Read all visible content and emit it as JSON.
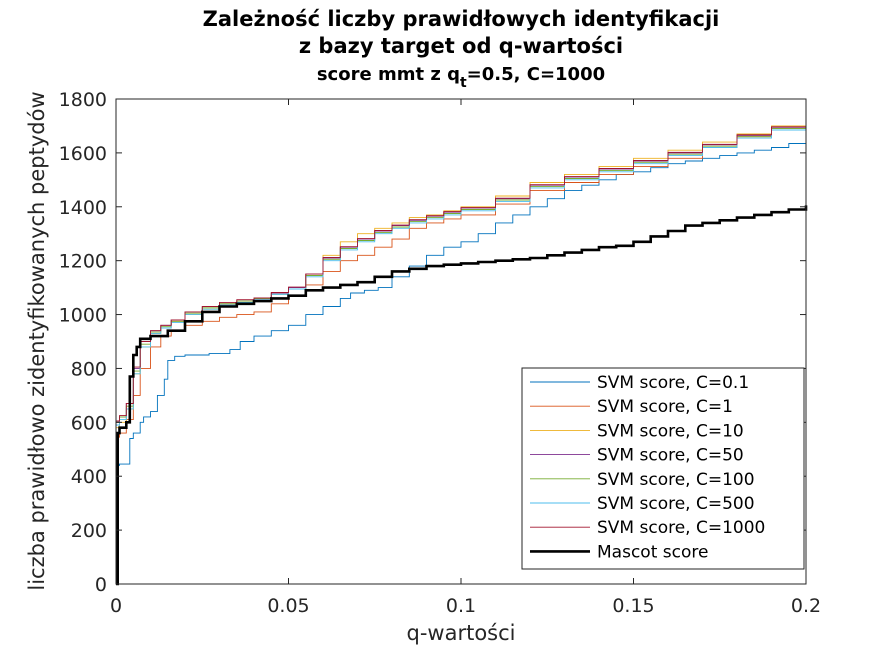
{
  "chart_data": {
    "type": "line",
    "title": "Zależność liczby prawidłowych identyfikacji",
    "title_line2": "z bazy target od q-wartości",
    "subtitle_prefix": "score mmt z q",
    "subtitle_sub": "t",
    "subtitle_suffix": "=0.5, C=1000",
    "xlabel": "q-wartości",
    "ylabel": "liczba prawidłowo zidentyfikowanych peptydów",
    "xlim": [
      0,
      0.2
    ],
    "ylim": [
      0,
      1800
    ],
    "xticks": [
      0,
      0.05,
      0.1,
      0.15,
      0.2
    ],
    "xtick_labels": [
      "0",
      "0.05",
      "0.1",
      "0.15",
      "0.2"
    ],
    "yticks": [
      0,
      200,
      400,
      600,
      800,
      1000,
      1200,
      1400,
      1600,
      1800
    ],
    "ytick_labels": [
      "0",
      "200",
      "400",
      "600",
      "800",
      "1000",
      "1200",
      "1400",
      "1600",
      "1800"
    ],
    "grid": false,
    "legend_position": "bottom-right",
    "series": [
      {
        "name": "SVM score, C=0.1",
        "color": "#0072BD",
        "line_width": 0.9,
        "x": [
          0,
          0.001,
          0.004,
          0.005,
          0.007,
          0.008,
          0.01,
          0.012,
          0.014,
          0.015,
          0.017,
          0.02,
          0.027,
          0.033,
          0.036,
          0.04,
          0.045,
          0.05,
          0.055,
          0.06,
          0.065,
          0.068,
          0.072,
          0.076,
          0.08,
          0.085,
          0.09,
          0.095,
          0.1,
          0.105,
          0.11,
          0.115,
          0.12,
          0.125,
          0.13,
          0.135,
          0.14,
          0.145,
          0.15,
          0.155,
          0.16,
          0.165,
          0.17,
          0.175,
          0.18,
          0.185,
          0.19,
          0.195,
          0.2
        ],
        "y": [
          440,
          445,
          540,
          560,
          600,
          620,
          640,
          700,
          760,
          830,
          845,
          850,
          855,
          870,
          900,
          920,
          940,
          960,
          1000,
          1030,
          1060,
          1080,
          1090,
          1100,
          1140,
          1180,
          1220,
          1250,
          1270,
          1300,
          1340,
          1370,
          1400,
          1430,
          1460,
          1480,
          1500,
          1520,
          1530,
          1545,
          1560,
          1570,
          1580,
          1590,
          1600,
          1610,
          1620,
          1635,
          1640
        ]
      },
      {
        "name": "SVM score, C=1",
        "color": "#D95319",
        "line_width": 0.9,
        "x": [
          0,
          0.001,
          0.003,
          0.005,
          0.007,
          0.01,
          0.013,
          0.016,
          0.02,
          0.025,
          0.03,
          0.035,
          0.04,
          0.045,
          0.05,
          0.055,
          0.06,
          0.065,
          0.07,
          0.075,
          0.08,
          0.085,
          0.09,
          0.095,
          0.1,
          0.11,
          0.12,
          0.13,
          0.14,
          0.15,
          0.16,
          0.17,
          0.18,
          0.19,
          0.2
        ],
        "y": [
          545,
          560,
          610,
          700,
          800,
          880,
          920,
          940,
          960,
          975,
          990,
          1000,
          1010,
          1040,
          1070,
          1110,
          1160,
          1200,
          1220,
          1250,
          1280,
          1320,
          1340,
          1355,
          1370,
          1410,
          1460,
          1490,
          1520,
          1550,
          1580,
          1620,
          1660,
          1690,
          1720
        ]
      },
      {
        "name": "SVM score, C=10",
        "color": "#EDB120",
        "line_width": 0.9,
        "x": [
          0,
          0.001,
          0.003,
          0.005,
          0.007,
          0.01,
          0.013,
          0.016,
          0.02,
          0.025,
          0.03,
          0.035,
          0.04,
          0.045,
          0.05,
          0.055,
          0.06,
          0.065,
          0.07,
          0.075,
          0.08,
          0.085,
          0.09,
          0.095,
          0.1,
          0.11,
          0.12,
          0.13,
          0.14,
          0.15,
          0.16,
          0.17,
          0.18,
          0.19,
          0.2
        ],
        "y": [
          580,
          600,
          650,
          780,
          880,
          930,
          950,
          975,
          1000,
          1020,
          1040,
          1050,
          1060,
          1080,
          1100,
          1150,
          1220,
          1270,
          1300,
          1320,
          1340,
          1360,
          1370,
          1385,
          1400,
          1440,
          1490,
          1520,
          1550,
          1580,
          1610,
          1640,
          1670,
          1700,
          1730
        ]
      },
      {
        "name": "SVM score, C=50",
        "color": "#7E2F8E",
        "line_width": 0.9,
        "x": [
          0,
          0.001,
          0.003,
          0.005,
          0.007,
          0.01,
          0.013,
          0.016,
          0.02,
          0.025,
          0.03,
          0.035,
          0.04,
          0.045,
          0.05,
          0.055,
          0.06,
          0.065,
          0.07,
          0.075,
          0.08,
          0.085,
          0.09,
          0.095,
          0.1,
          0.11,
          0.12,
          0.13,
          0.14,
          0.15,
          0.16,
          0.17,
          0.18,
          0.19,
          0.2
        ],
        "y": [
          600,
          620,
          670,
          800,
          900,
          940,
          960,
          980,
          1010,
          1030,
          1040,
          1050,
          1060,
          1080,
          1100,
          1150,
          1210,
          1250,
          1280,
          1310,
          1330,
          1350,
          1365,
          1380,
          1395,
          1430,
          1480,
          1510,
          1540,
          1570,
          1600,
          1630,
          1665,
          1695,
          1735
        ]
      },
      {
        "name": "SVM score, C=100",
        "color": "#77AC30",
        "line_width": 0.9,
        "x": [
          0,
          0.001,
          0.003,
          0.005,
          0.007,
          0.01,
          0.013,
          0.016,
          0.02,
          0.025,
          0.03,
          0.035,
          0.04,
          0.045,
          0.05,
          0.055,
          0.06,
          0.065,
          0.07,
          0.075,
          0.08,
          0.085,
          0.09,
          0.095,
          0.1,
          0.11,
          0.12,
          0.13,
          0.14,
          0.15,
          0.16,
          0.17,
          0.18,
          0.19,
          0.2
        ],
        "y": [
          600,
          620,
          660,
          790,
          890,
          935,
          955,
          975,
          1005,
          1025,
          1040,
          1050,
          1060,
          1075,
          1095,
          1145,
          1205,
          1245,
          1275,
          1305,
          1325,
          1345,
          1360,
          1375,
          1390,
          1425,
          1475,
          1505,
          1535,
          1565,
          1595,
          1625,
          1660,
          1690,
          1725
        ]
      },
      {
        "name": "SVM score, C=500",
        "color": "#4DBEEE",
        "line_width": 0.9,
        "x": [
          0,
          0.001,
          0.003,
          0.005,
          0.007,
          0.01,
          0.013,
          0.016,
          0.02,
          0.025,
          0.03,
          0.035,
          0.04,
          0.045,
          0.05,
          0.055,
          0.06,
          0.065,
          0.07,
          0.075,
          0.08,
          0.085,
          0.09,
          0.095,
          0.1,
          0.11,
          0.12,
          0.13,
          0.14,
          0.15,
          0.16,
          0.17,
          0.18,
          0.19,
          0.2
        ],
        "y": [
          590,
          610,
          650,
          780,
          880,
          930,
          950,
          970,
          1000,
          1020,
          1035,
          1045,
          1055,
          1075,
          1095,
          1140,
          1200,
          1240,
          1270,
          1300,
          1320,
          1340,
          1355,
          1370,
          1385,
          1420,
          1470,
          1500,
          1530,
          1560,
          1590,
          1620,
          1655,
          1685,
          1720
        ]
      },
      {
        "name": "SVM score, C=1000",
        "color": "#A2142F",
        "line_width": 0.9,
        "x": [
          0,
          0.001,
          0.003,
          0.005,
          0.007,
          0.01,
          0.013,
          0.016,
          0.02,
          0.025,
          0.03,
          0.035,
          0.04,
          0.045,
          0.05,
          0.055,
          0.06,
          0.065,
          0.07,
          0.075,
          0.08,
          0.085,
          0.09,
          0.095,
          0.1,
          0.11,
          0.12,
          0.13,
          0.14,
          0.15,
          0.16,
          0.17,
          0.18,
          0.19,
          0.2
        ],
        "y": [
          605,
          625,
          670,
          805,
          900,
          940,
          960,
          980,
          1010,
          1030,
          1045,
          1055,
          1062,
          1082,
          1102,
          1150,
          1212,
          1252,
          1282,
          1312,
          1332,
          1352,
          1367,
          1382,
          1397,
          1432,
          1482,
          1512,
          1542,
          1572,
          1602,
          1632,
          1667,
          1697,
          1737
        ]
      },
      {
        "name": "Mascot score",
        "color": "#000000",
        "line_width": 2.6,
        "x": [
          0,
          0.0005,
          0.001,
          0.003,
          0.004,
          0.005,
          0.006,
          0.007,
          0.01,
          0.015,
          0.02,
          0.025,
          0.03,
          0.035,
          0.04,
          0.045,
          0.05,
          0.055,
          0.06,
          0.065,
          0.07,
          0.075,
          0.08,
          0.085,
          0.09,
          0.095,
          0.1,
          0.105,
          0.11,
          0.115,
          0.12,
          0.125,
          0.13,
          0.135,
          0.14,
          0.145,
          0.15,
          0.155,
          0.16,
          0.165,
          0.17,
          0.175,
          0.18,
          0.185,
          0.19,
          0.195,
          0.2
        ],
        "y": [
          0,
          560,
          580,
          600,
          770,
          850,
          880,
          910,
          920,
          940,
          975,
          1010,
          1030,
          1040,
          1050,
          1060,
          1070,
          1090,
          1100,
          1110,
          1120,
          1140,
          1160,
          1170,
          1180,
          1185,
          1190,
          1195,
          1200,
          1205,
          1210,
          1220,
          1230,
          1240,
          1250,
          1255,
          1270,
          1290,
          1310,
          1330,
          1340,
          1350,
          1360,
          1370,
          1380,
          1390,
          1405
        ]
      }
    ]
  }
}
